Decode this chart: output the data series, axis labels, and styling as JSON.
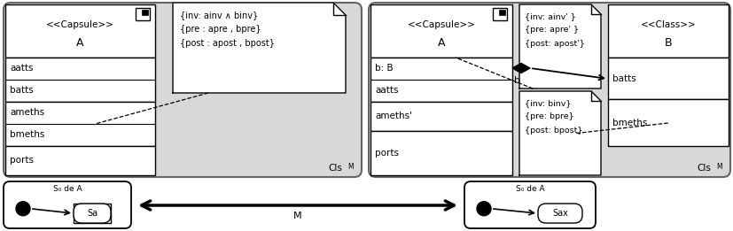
{
  "fig_w": 8.27,
  "fig_h": 2.61,
  "dpi": 100,
  "gray_panel": "#d8d8d8",
  "white": "#ffffff",
  "black": "#000000",
  "note_fold": 0.012,
  "texts": {
    "capsule_stereo": "<<Capsule>>",
    "class_stereo": "<<Class>>",
    "name_A": "A",
    "name_B": "B",
    "left_attrs": [
      "aatts",
      "batts"
    ],
    "left_meths": [
      "ameths",
      "bmeths"
    ],
    "left_ports": "ports",
    "left_note": [
      "{inv: ainv ∧ binv}",
      "{pre : apre , bpre}",
      "{post : apost , bpost}"
    ],
    "right_attrs": [
      "b: B",
      "aatts"
    ],
    "right_meths": "ameths'",
    "right_ports": "ports",
    "right_note_top": [
      "{inv: ainv' }",
      "{pre: apre' }",
      "{post: apost'}"
    ],
    "right_note_bot": [
      "{inv: binv}",
      "{pre: bpre}",
      "{post: bpost}"
    ],
    "class_attrs": "batts",
    "class_meths": "bmeths",
    "clsM": "Cls",
    "clsM_sub": "M",
    "assoc_label": "b",
    "left_state_label": "S₀ de A",
    "left_state_name": "Sa",
    "right_state_label": "S₀ de A",
    "right_state_name": "Sax",
    "arrow_label": "M"
  }
}
